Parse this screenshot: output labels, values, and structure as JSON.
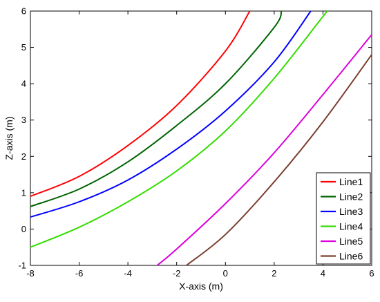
{
  "chart_data": {
    "type": "line",
    "title": "",
    "xlabel": "X-axis (m)",
    "ylabel": "Z-axis (m)",
    "xlim": [
      -8,
      6
    ],
    "ylim": [
      -1,
      6
    ],
    "xticks": [
      -8,
      -6,
      -4,
      -2,
      0,
      2,
      4,
      6
    ],
    "yticks": [
      -1,
      0,
      1,
      2,
      3,
      4,
      5,
      6
    ],
    "xtick_labels": [
      "-8",
      "-6",
      "-4",
      "-2",
      "0",
      "2",
      "4",
      "6"
    ],
    "ytick_labels": [
      "-1",
      "0",
      "1",
      "2",
      "3",
      "4",
      "5",
      "6"
    ],
    "grid": false,
    "legend_position": "bottom-right",
    "series": [
      {
        "name": "Line1",
        "color": "#ff0000",
        "x": [
          -8,
          -6,
          -4,
          -2,
          0,
          1
        ],
        "y": [
          0.9,
          1.45,
          2.3,
          3.4,
          4.9,
          6.0
        ]
      },
      {
        "name": "Line2",
        "color": "#006400",
        "x": [
          -8,
          -6,
          -4,
          -2,
          0,
          2,
          2.3
        ],
        "y": [
          0.62,
          1.1,
          1.85,
          2.85,
          4.0,
          5.55,
          6.0
        ]
      },
      {
        "name": "Line3",
        "color": "#0000ff",
        "x": [
          -8,
          -6,
          -4,
          -2,
          0,
          2,
          3.5
        ],
        "y": [
          0.33,
          0.75,
          1.35,
          2.2,
          3.25,
          4.6,
          6.0
        ]
      },
      {
        "name": "Line4",
        "color": "#33dd00",
        "x": [
          -8,
          -6,
          -4,
          -2,
          0,
          2,
          4,
          4.2
        ],
        "y": [
          -0.5,
          0.05,
          0.75,
          1.6,
          2.7,
          4.15,
          5.85,
          6.0
        ]
      },
      {
        "name": "Line5",
        "color": "#dd00dd",
        "x": [
          -2.8,
          -2,
          0,
          2,
          4,
          6
        ],
        "y": [
          -1.0,
          -0.55,
          0.7,
          2.1,
          3.7,
          5.35
        ]
      },
      {
        "name": "Line6",
        "color": "#7a3e2e",
        "x": [
          -1.6,
          0,
          2,
          4,
          6
        ],
        "y": [
          -1.0,
          -0.15,
          1.3,
          2.95,
          4.8
        ]
      }
    ]
  }
}
